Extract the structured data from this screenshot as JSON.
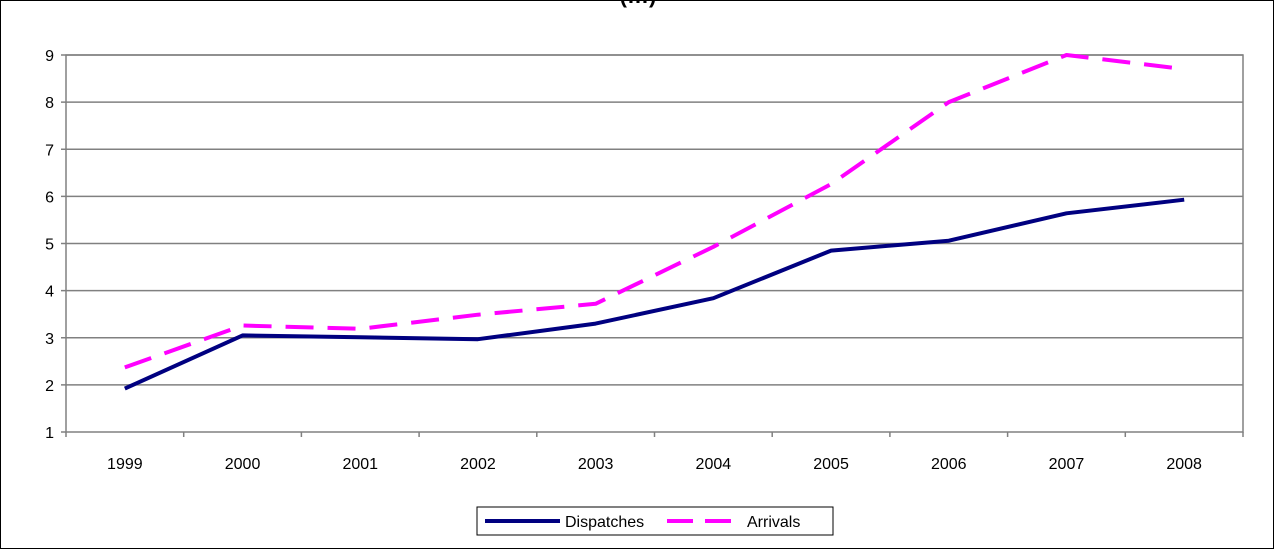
{
  "chart_data": {
    "type": "line",
    "title": "(…)",
    "xlabel": "",
    "ylabel": "",
    "categories": [
      "1999",
      "2000",
      "2001",
      "2002",
      "2003",
      "2004",
      "2005",
      "2006",
      "2007",
      "2008"
    ],
    "ylim": [
      1,
      9
    ],
    "yticks": [
      1,
      2,
      3,
      4,
      5,
      6,
      7,
      8,
      9
    ],
    "grid": true,
    "legend_position": "bottom",
    "series": [
      {
        "name": "Dispatches",
        "values": [
          1.92,
          3.05,
          3.01,
          2.97,
          3.3,
          3.84,
          4.85,
          5.06,
          5.64,
          5.93
        ],
        "color": "#000080",
        "style": "solid"
      },
      {
        "name": "Arrivals",
        "values": [
          2.37,
          3.26,
          3.19,
          3.49,
          3.72,
          4.93,
          6.26,
          8.0,
          9.0,
          8.7
        ],
        "color": "#ff00ff",
        "style": "dashed"
      }
    ]
  }
}
